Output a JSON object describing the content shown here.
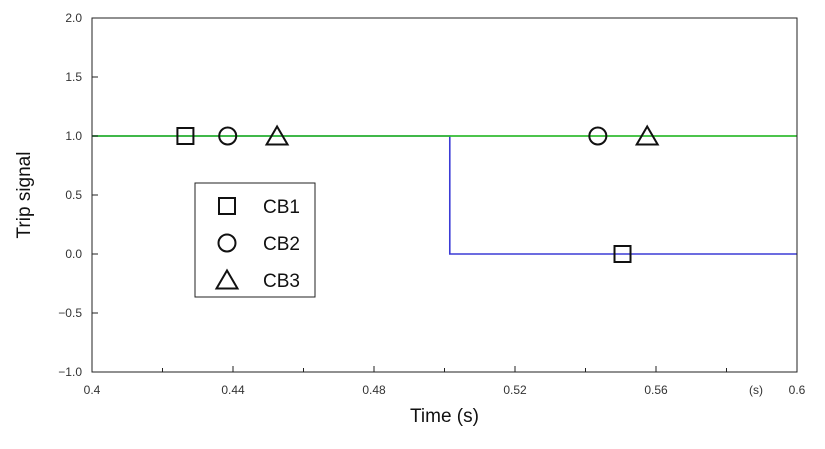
{
  "chart_data": {
    "type": "line",
    "title": "",
    "xlabel": "Time (s)",
    "ylabel": "Trip signal",
    "x_unit_label": "(s)",
    "xlim": [
      0.4,
      0.6
    ],
    "ylim": [
      -1.0,
      2.0
    ],
    "x_ticks": [
      {
        "value": 0.4,
        "label": "0.4"
      },
      {
        "value": 0.44,
        "label": "0.44"
      },
      {
        "value": 0.48,
        "label": "0.48"
      },
      {
        "value": 0.52,
        "label": "0.52"
      },
      {
        "value": 0.56,
        "label": "0.56"
      },
      {
        "value": 0.6,
        "label": "0.6"
      }
    ],
    "x_minor_ticks": [
      0.42,
      0.46,
      0.5,
      0.54,
      0.58
    ],
    "y_ticks": [
      {
        "value": 2.0,
        "label": "2.0"
      },
      {
        "value": 1.5,
        "label": "1.5"
      },
      {
        "value": 1.0,
        "label": "1.0"
      },
      {
        "value": 0.5,
        "label": "0.5"
      },
      {
        "value": 0.0,
        "label": "0.0"
      },
      {
        "value": -0.5,
        "label": "−0.5"
      },
      {
        "value": -1.0,
        "label": "−1.0"
      }
    ],
    "grid": false,
    "series": [
      {
        "name": "CB1",
        "color": "#3b3bd6",
        "marker": "square",
        "points": [
          [
            0.4,
            1.0
          ],
          [
            0.5015,
            1.0
          ],
          [
            0.5015,
            0.0
          ],
          [
            0.6,
            0.0
          ]
        ],
        "markers": [
          [
            0.4265,
            1.0
          ],
          [
            0.5505,
            0.0
          ]
        ]
      },
      {
        "name": "CB2",
        "color": "#33bb33",
        "marker": "circle",
        "points": [
          [
            0.4,
            1.0
          ],
          [
            0.6,
            1.0
          ]
        ],
        "markers": [
          [
            0.4385,
            1.0
          ],
          [
            0.5435,
            1.0
          ]
        ]
      },
      {
        "name": "CB3",
        "color": "#33bb33",
        "marker": "triangle",
        "points": [
          [
            0.4,
            1.0
          ],
          [
            0.6,
            1.0
          ]
        ],
        "markers": [
          [
            0.4525,
            1.0
          ],
          [
            0.5575,
            1.0
          ]
        ]
      }
    ],
    "legend": {
      "position": "center-left",
      "entries": [
        {
          "label": "CB1",
          "marker": "square"
        },
        {
          "label": "CB2",
          "marker": "circle"
        },
        {
          "label": "CB3",
          "marker": "triangle"
        }
      ]
    }
  }
}
